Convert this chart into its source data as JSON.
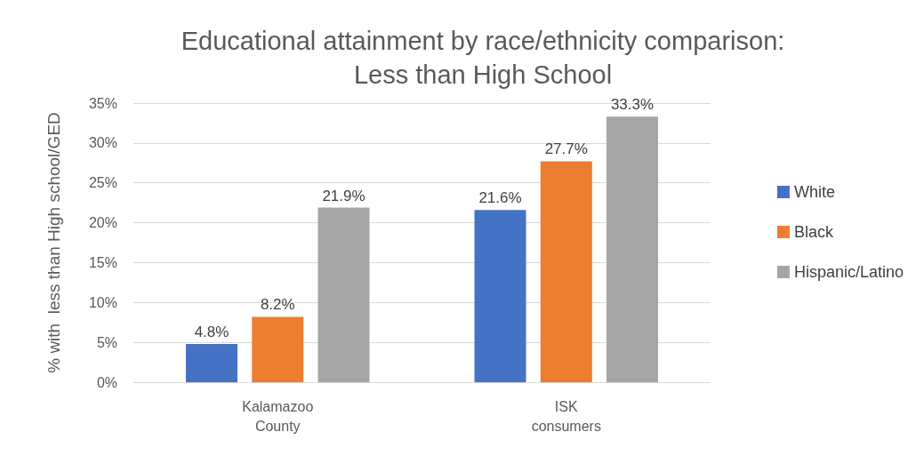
{
  "chart_data": {
    "type": "bar",
    "title": "Educational attainment by race/ethnicity comparison:\nLess than High School",
    "ylabel": "% with  less than High school/GED",
    "categories": [
      "Kalamazoo\nCounty",
      "ISK\nconsumers"
    ],
    "series": [
      {
        "name": "White",
        "color": "#4472c4",
        "values": [
          4.8,
          21.6
        ],
        "value_labels": [
          "4.8%",
          "21.6%"
        ]
      },
      {
        "name": "Black",
        "color": "#ed7d31",
        "values": [
          8.2,
          27.7
        ],
        "value_labels": [
          "8.2%",
          "27.7%"
        ]
      },
      {
        "name": "Hispanic/Latino",
        "color": "#a5a5a5",
        "values": [
          21.9,
          33.3
        ],
        "value_labels": [
          "21.9%",
          "33.3%"
        ]
      }
    ],
    "ylim": [
      0,
      35
    ],
    "yticks": [
      {
        "value": 0,
        "label": "0%"
      },
      {
        "value": 5,
        "label": "5%"
      },
      {
        "value": 10,
        "label": "10%"
      },
      {
        "value": 15,
        "label": "15%"
      },
      {
        "value": 20,
        "label": "20%"
      },
      {
        "value": 25,
        "label": "25%"
      },
      {
        "value": 30,
        "label": "30%"
      },
      {
        "value": 35,
        "label": "35%"
      }
    ],
    "grid": "y",
    "legend": "right"
  }
}
